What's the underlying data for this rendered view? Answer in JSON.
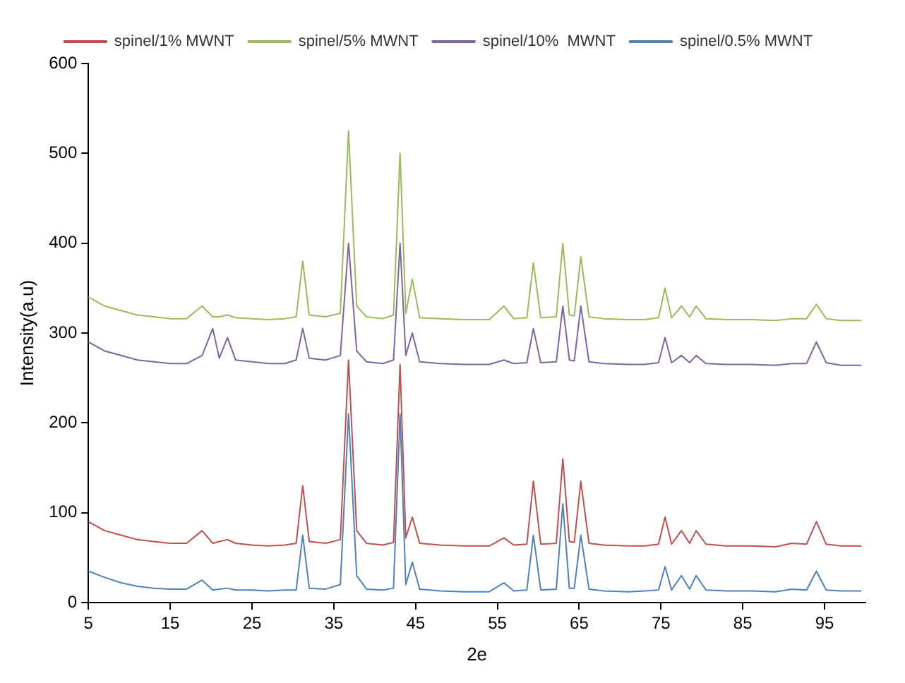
{
  "chart_data": {
    "type": "line",
    "xlabel": "2e",
    "ylabel": "Intensity(a.u)",
    "x": [
      5,
      7,
      9,
      11,
      13,
      15,
      17,
      18.9,
      20.2,
      21,
      22,
      23,
      25,
      27,
      29,
      30.4,
      31.2,
      32,
      34,
      35.8,
      36.8,
      37.8,
      39,
      41,
      42.3,
      43.1,
      43.8,
      44.6,
      45.5,
      48,
      51,
      54,
      55.8,
      57,
      58.6,
      59.4,
      60.3,
      62.2,
      63,
      63.8,
      64.4,
      65.2,
      66.2,
      68,
      71,
      73,
      74.7,
      75.5,
      76.3,
      77.5,
      78.5,
      79.3,
      80.5,
      83,
      86,
      89,
      91,
      92.8,
      94,
      95.2,
      97,
      99.5
    ],
    "series": [
      {
        "name": "spinel/1% MWNT",
        "color": "#c0504d",
        "values": [
          90,
          80,
          75,
          70,
          68,
          66,
          66,
          80,
          66,
          68,
          70,
          66,
          64,
          63,
          64,
          66,
          130,
          68,
          66,
          70,
          270,
          80,
          66,
          64,
          67,
          265,
          72,
          95,
          66,
          64,
          63,
          63,
          72,
          64,
          65,
          135,
          65,
          66,
          160,
          68,
          67,
          135,
          66,
          64,
          63,
          63,
          65,
          95,
          65,
          80,
          66,
          80,
          65,
          63,
          63,
          62,
          66,
          65,
          90,
          65,
          63,
          63
        ]
      },
      {
        "name": "spinel/5% MWNT",
        "color": "#9bbb59",
        "values": [
          340,
          330,
          325,
          320,
          318,
          316,
          316,
          330,
          318,
          318,
          320,
          317,
          316,
          315,
          316,
          318,
          380,
          320,
          318,
          322,
          525,
          330,
          318,
          316,
          320,
          500,
          322,
          360,
          317,
          316,
          315,
          315,
          330,
          316,
          317,
          378,
          317,
          318,
          400,
          320,
          319,
          385,
          318,
          316,
          315,
          315,
          317,
          350,
          317,
          330,
          318,
          330,
          316,
          315,
          315,
          314,
          316,
          316,
          332,
          316,
          314,
          314
        ]
      },
      {
        "name": "spinel/10%  MWNT",
        "color": "#8064a2",
        "values": [
          290,
          280,
          275,
          270,
          268,
          266,
          266,
          275,
          305,
          272,
          295,
          270,
          268,
          266,
          266,
          270,
          305,
          272,
          270,
          275,
          400,
          280,
          268,
          266,
          270,
          400,
          275,
          300,
          268,
          266,
          265,
          265,
          270,
          266,
          267,
          305,
          267,
          268,
          330,
          270,
          269,
          330,
          268,
          266,
          265,
          265,
          267,
          295,
          267,
          275,
          267,
          275,
          266,
          265,
          265,
          264,
          266,
          266,
          290,
          267,
          264,
          264
        ]
      },
      {
        "name": "spinel/0.5% MWNT",
        "color": "#4f81bd",
        "values": [
          35,
          28,
          22,
          18,
          16,
          15,
          15,
          25,
          14,
          15,
          16,
          14,
          14,
          13,
          14,
          14,
          75,
          16,
          15,
          20,
          210,
          30,
          15,
          14,
          16,
          210,
          20,
          45,
          15,
          13,
          12,
          12,
          22,
          13,
          14,
          75,
          14,
          15,
          110,
          16,
          16,
          75,
          15,
          13,
          12,
          13,
          14,
          40,
          14,
          30,
          15,
          30,
          14,
          13,
          13,
          12,
          15,
          14,
          35,
          14,
          13,
          13
        ]
      }
    ],
    "xlim": [
      5,
      100
    ],
    "xticks": [
      5,
      15,
      25,
      35,
      45,
      55,
      65,
      75,
      85,
      95
    ],
    "ylim": [
      0,
      600
    ],
    "yticks": [
      0,
      100,
      200,
      300,
      400,
      500,
      600
    ],
    "grid": false,
    "legend": "top",
    "marker": "none",
    "line_style": "solid"
  }
}
